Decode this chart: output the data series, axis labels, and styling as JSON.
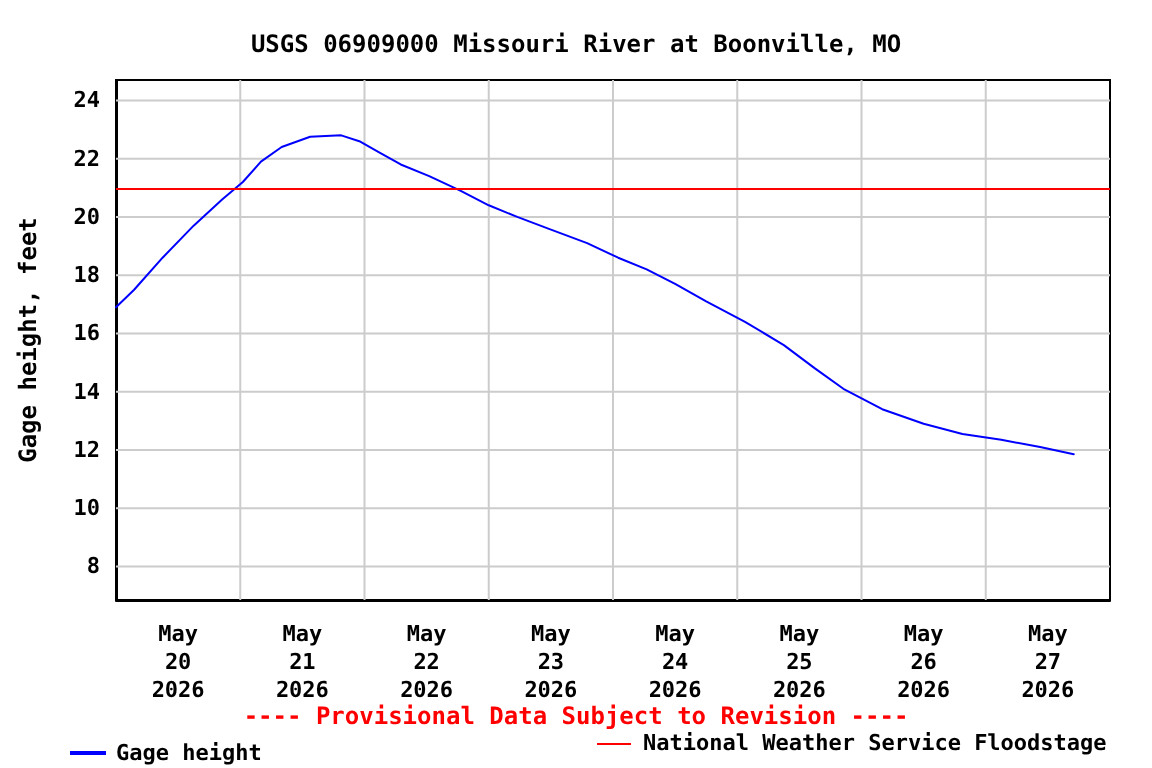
{
  "chart_data": {
    "type": "line",
    "title": "USGS 06909000 Missouri River at Boonville, MO",
    "ylabel": "Gage height, feet",
    "annotations": [
      "---- Provisional Data Subject to Revision ----"
    ],
    "series": [
      {
        "name": "Gage height",
        "color": "#0000ff",
        "x": [
          "2026-05-20T00:00",
          "2026-05-20T03:30",
          "2026-05-20T09:00",
          "2026-05-20T15:00",
          "2026-05-20T20:30",
          "2026-05-21T00:30",
          "2026-05-21T04:00",
          "2026-05-21T08:00",
          "2026-05-21T13:30",
          "2026-05-21T19:30",
          "2026-05-21T23:00",
          "2026-05-22T03:00",
          "2026-05-22T07:00",
          "2026-05-22T12:30",
          "2026-05-22T18:30",
          "2026-05-23T00:00",
          "2026-05-23T05:30",
          "2026-05-23T11:30",
          "2026-05-23T19:00",
          "2026-05-24T01:00",
          "2026-05-24T06:30",
          "2026-05-24T12:00",
          "2026-05-24T18:00",
          "2026-05-25T01:30",
          "2026-05-25T09:00",
          "2026-05-25T15:00",
          "2026-05-25T20:30",
          "2026-05-26T04:00",
          "2026-05-26T12:00",
          "2026-05-26T19:30",
          "2026-05-27T03:00",
          "2026-05-27T10:30",
          "2026-05-27T17:00"
        ],
        "values": [
          16.9,
          17.5,
          18.6,
          19.7,
          20.6,
          21.2,
          21.9,
          22.4,
          22.75,
          22.8,
          22.6,
          22.2,
          21.8,
          21.4,
          20.9,
          20.4,
          20.0,
          19.6,
          19.1,
          18.6,
          18.2,
          17.7,
          17.1,
          16.4,
          15.6,
          14.8,
          14.1,
          13.4,
          12.9,
          12.55,
          12.35,
          12.1,
          11.85
        ]
      }
    ],
    "xlim": [
      "2026-05-20T00:00",
      "2026-05-28T00:00"
    ],
    "xticks": [
      {
        "value": "2026-05-20T12:00",
        "label": "May\n20\n2026"
      },
      {
        "value": "2026-05-21T00:00",
        "label": null
      },
      {
        "value": "2026-05-21T12:00",
        "label": "May\n21\n2026"
      },
      {
        "value": "2026-05-22T00:00",
        "label": null
      },
      {
        "value": "2026-05-22T12:00",
        "label": "May\n22\n2026"
      },
      {
        "value": "2026-05-23T00:00",
        "label": null
      },
      {
        "value": "2026-05-23T12:00",
        "label": "May\n23\n2026"
      },
      {
        "value": "2026-05-24T00:00",
        "label": null
      },
      {
        "value": "2026-05-24T12:00",
        "label": "May\n24\n2026"
      },
      {
        "value": "2026-05-25T00:00",
        "label": null
      },
      {
        "value": "2026-05-25T12:00",
        "label": "May\n25\n2026"
      },
      {
        "value": "2026-05-26T00:00",
        "label": null
      },
      {
        "value": "2026-05-26T12:00",
        "label": "May\n26\n2026"
      },
      {
        "value": "2026-05-27T00:00",
        "label": null
      },
      {
        "value": "2026-05-27T12:00",
        "label": "May\n27\n2026"
      }
    ],
    "ylim": [
      6.85,
      24.7
    ],
    "yticks": [
      8,
      10,
      12,
      14,
      16,
      18,
      20,
      22,
      24
    ],
    "ref_lines": [
      {
        "axis": "y",
        "value": 21,
        "label": "National Weather Service Floodstage",
        "color": "#ff0000"
      }
    ],
    "grid": true,
    "legend": "bottom",
    "marker": "none",
    "line_style": "solid"
  }
}
